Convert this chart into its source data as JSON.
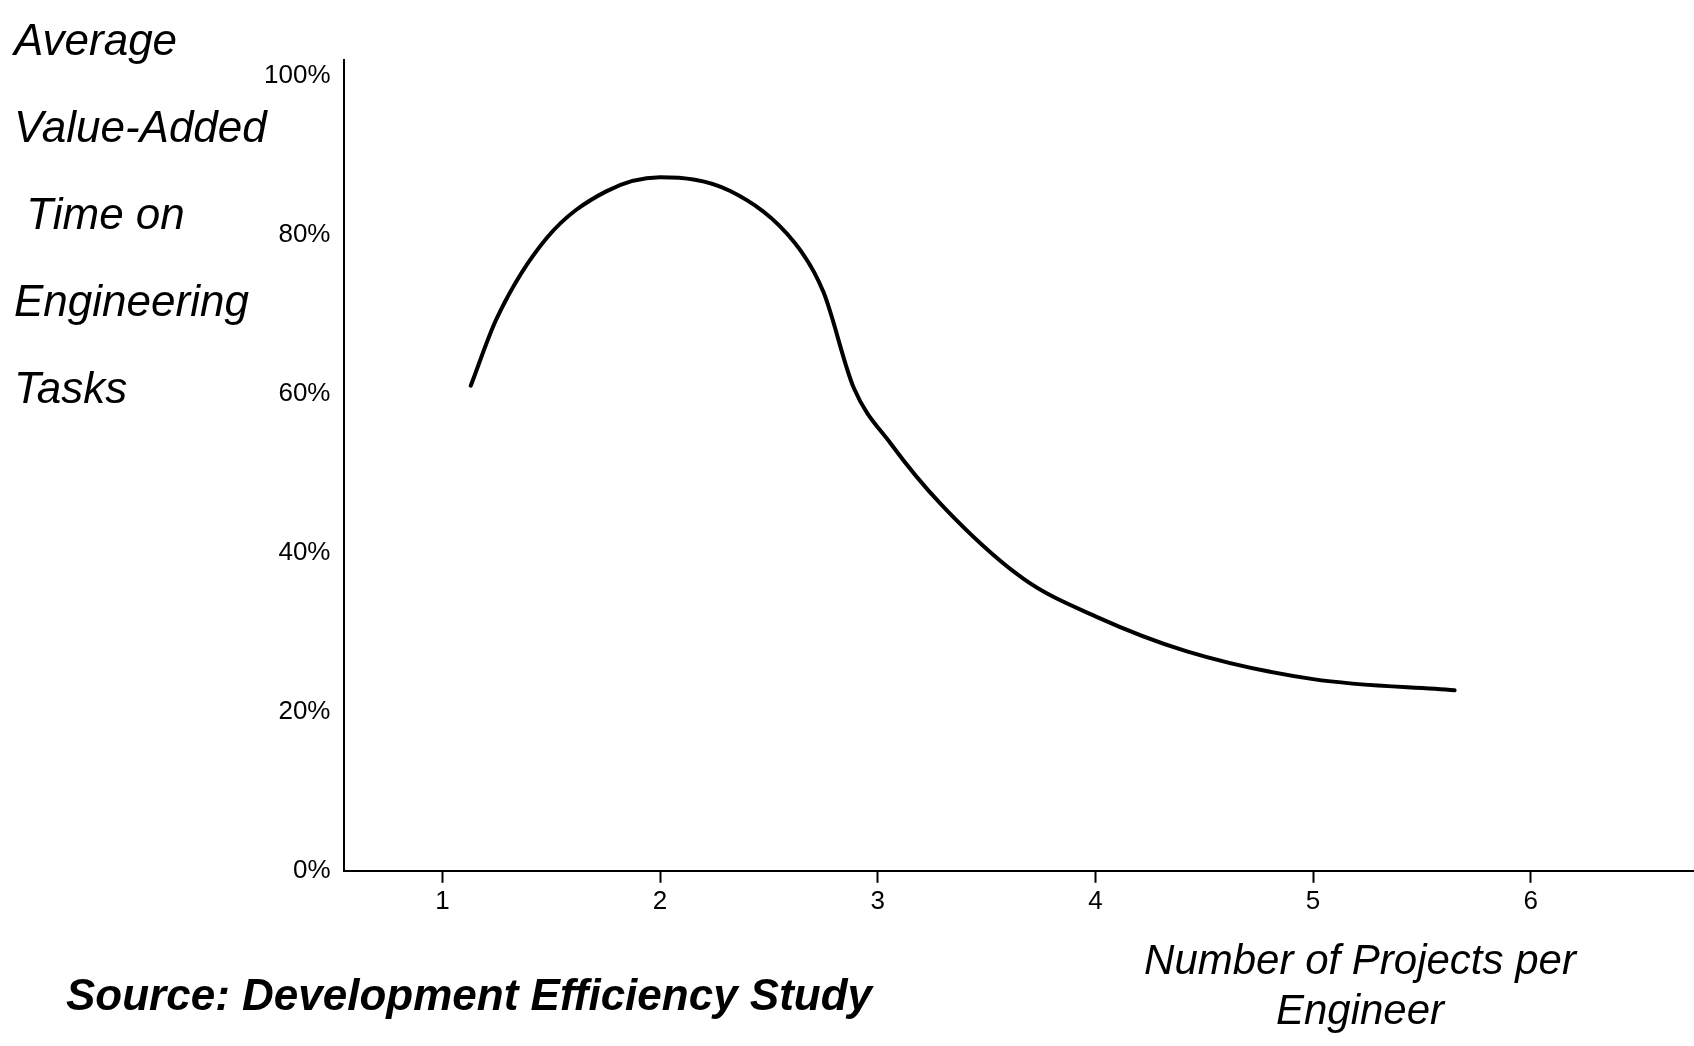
{
  "chart_data": {
    "type": "line",
    "ylabel": "Average\nValue-Added\n Time on\nEngineering\nTasks",
    "xlabel": "Number of Projects per\nEngineer",
    "annotations": [
      "Source: Development Efficiency Study"
    ],
    "x": [
      1.13,
      1.25,
      1.48,
      1.75,
      2,
      2.32,
      2.62,
      2.75,
      2.89,
      3.06,
      3.29,
      3.67,
      4,
      4.42,
      5,
      5.65
    ],
    "values": [
      61,
      69.5,
      79.6,
      85.4,
      87.2,
      85.5,
      78.9,
      72.8,
      60.7,
      53.7,
      46.1,
      36.7,
      32,
      27.6,
      24.1,
      22.7
    ],
    "color": "#000000",
    "marker": "none",
    "line_style": "solid",
    "grid": false,
    "legend": false,
    "xlim": [
      0.55,
      6.75
    ],
    "xticks": [
      1,
      2,
      3,
      4,
      5,
      6
    ],
    "ylim": [
      0,
      102
    ],
    "yticks": [
      {
        "value": 0,
        "label": "0%"
      },
      {
        "value": 20,
        "label": "20%"
      },
      {
        "value": 40,
        "label": "40%"
      },
      {
        "value": 60,
        "label": "60%"
      },
      {
        "value": 80,
        "label": "80%"
      },
      {
        "value": 100,
        "label": "100%"
      }
    ]
  }
}
